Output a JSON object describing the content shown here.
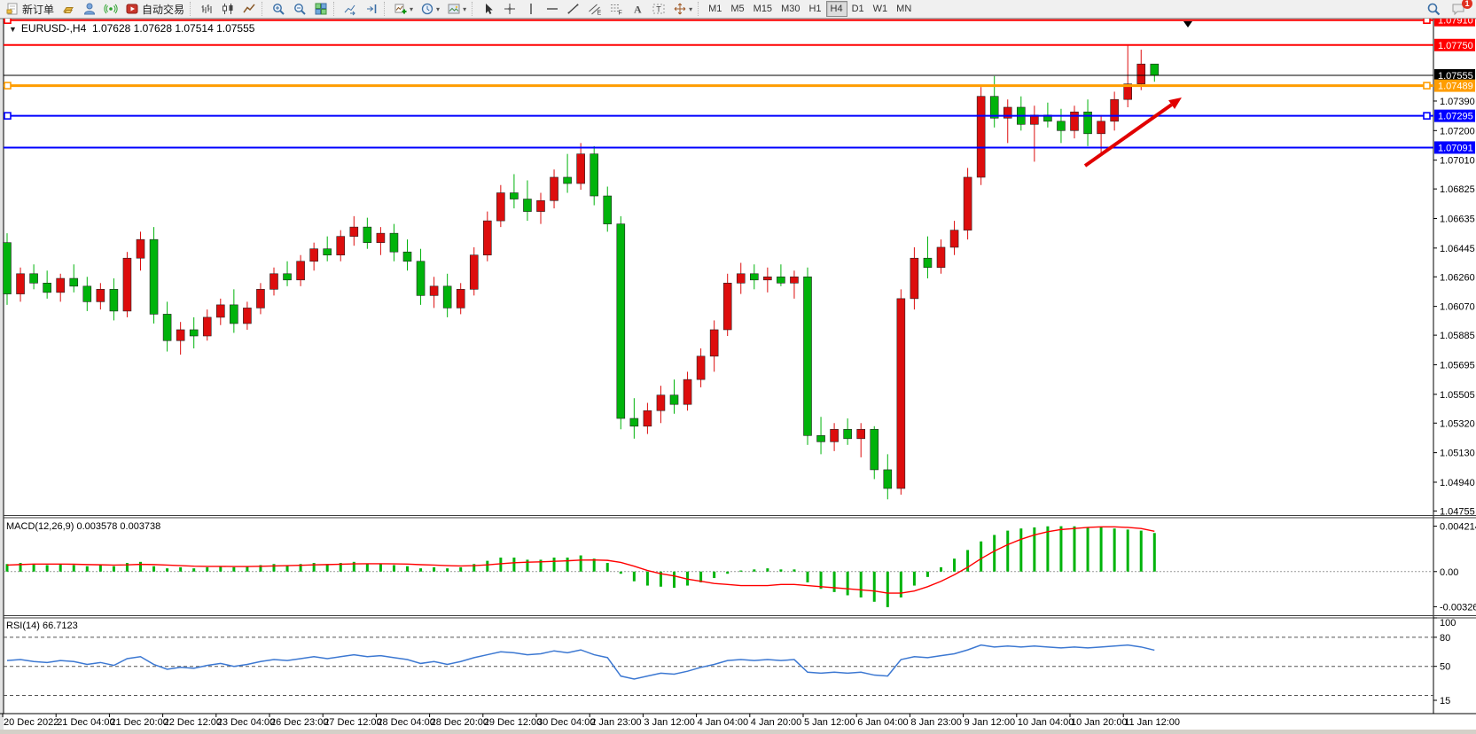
{
  "toolbar": {
    "groups": [
      {
        "items": [
          {
            "name": "new-order-button",
            "icon": "new-order",
            "label": "新订单"
          },
          {
            "name": "gold-button",
            "icon": "gold",
            "label": ""
          },
          {
            "name": "community-button",
            "icon": "community",
            "label": ""
          },
          {
            "name": "signals-button",
            "icon": "signals",
            "label": ""
          },
          {
            "name": "autotrading-button",
            "icon": "autotrading",
            "label": "自动交易"
          }
        ]
      },
      {
        "items": [
          {
            "name": "bars-chart-button",
            "icon": "bars",
            "label": ""
          },
          {
            "name": "candles-chart-button",
            "icon": "candles",
            "label": ""
          },
          {
            "name": "line-chart-button",
            "icon": "linechart",
            "label": ""
          }
        ]
      },
      {
        "items": [
          {
            "name": "zoom-in-button",
            "icon": "zoom-in",
            "label": ""
          },
          {
            "name": "zoom-out-button",
            "icon": "zoom-out",
            "label": ""
          },
          {
            "name": "tile-windows-button",
            "icon": "tile",
            "label": ""
          }
        ]
      },
      {
        "items": [
          {
            "name": "auto-scroll-button",
            "icon": "autoscroll",
            "label": ""
          },
          {
            "name": "chart-shift-button",
            "icon": "shift",
            "label": ""
          }
        ]
      },
      {
        "items": [
          {
            "name": "new-chart-button",
            "icon": "newchart",
            "label": "",
            "dropdown": true
          },
          {
            "name": "periods-button",
            "icon": "clock",
            "label": "",
            "dropdown": true
          },
          {
            "name": "templates-button",
            "icon": "template",
            "label": "",
            "dropdown": true
          }
        ]
      },
      {
        "items": [
          {
            "name": "cursor-button",
            "icon": "cursor",
            "label": ""
          },
          {
            "name": "crosshair-button",
            "icon": "crosshair",
            "label": ""
          },
          {
            "name": "vline-button",
            "icon": "vline",
            "label": ""
          },
          {
            "name": "hline-button",
            "icon": "hline",
            "label": ""
          },
          {
            "name": "trendline-button",
            "icon": "trendline",
            "label": ""
          },
          {
            "name": "channel-button",
            "icon": "channel",
            "label": ""
          },
          {
            "name": "fibonacci-button",
            "icon": "fibo",
            "label": ""
          },
          {
            "name": "text-button",
            "icon": "text",
            "label": ""
          },
          {
            "name": "label-button",
            "icon": "label",
            "label": ""
          },
          {
            "name": "arrows-button",
            "icon": "arrows",
            "label": "",
            "dropdown": true
          }
        ]
      }
    ],
    "timeframes": [
      "M1",
      "M5",
      "M15",
      "M30",
      "H1",
      "H4",
      "D1",
      "W1",
      "MN"
    ],
    "active_timeframe": "H4",
    "chat_badge": "1"
  },
  "chart": {
    "symbol": "EURUSD-,H4",
    "quote_line": "1.07628 1.07628 1.07514 1.07555",
    "macd_label": "MACD(12,26,9) 0.003578 0.003738",
    "rsi_label": "RSI(14) 66.7123"
  },
  "chart_data": [
    {
      "type": "candlestick",
      "symbol": "EURUSD-",
      "timeframe": "H4",
      "current_bar": {
        "open": 1.07628,
        "high": 1.07628,
        "low": 1.07514,
        "close": 1.07555
      },
      "up_color": "#dd0d0d",
      "down_color": "#00b30b",
      "ylim": [
        1.04729,
        1.07914
      ],
      "y_axis_ticks": [
        1.0739,
        1.072,
        1.0701,
        1.06825,
        1.06635,
        1.06445,
        1.0626,
        1.0607,
        1.05885,
        1.05695,
        1.05505,
        1.0532,
        1.0513,
        1.0494,
        1.04755
      ],
      "hlines": [
        {
          "price": 1.0791,
          "color": "#ff0000",
          "width": 2,
          "handles": true
        },
        {
          "price": 1.0775,
          "color": "#ff0000",
          "width": 2,
          "handles": false
        },
        {
          "price": 1.07555,
          "color": "#000000",
          "width": 1,
          "handles": false,
          "role": "current-price"
        },
        {
          "price": 1.07489,
          "color": "#ff9d00",
          "width": 3,
          "handles": true
        },
        {
          "price": 1.07295,
          "color": "#0000ff",
          "width": 2,
          "handles": true
        },
        {
          "price": 1.07091,
          "color": "#0000ff",
          "width": 2,
          "handles": false
        }
      ],
      "price_badges": [
        {
          "price": 1.0791,
          "bg": "#ff0000"
        },
        {
          "price": 1.0775,
          "bg": "#ff0000"
        },
        {
          "price": 1.07555,
          "bg": "#000000"
        },
        {
          "price": 1.07489,
          "bg": "#ff9d00"
        },
        {
          "price": 1.07295,
          "bg": "#0000ff"
        },
        {
          "price": 1.07091,
          "bg": "#0000ff"
        }
      ],
      "candles": [
        [
          1.0648,
          1.0654,
          1.0608,
          1.0615
        ],
        [
          1.0615,
          1.0632,
          1.061,
          1.0628
        ],
        [
          1.0628,
          1.0634,
          1.0618,
          1.0622
        ],
        [
          1.0622,
          1.063,
          1.0612,
          1.0616
        ],
        [
          1.0616,
          1.0628,
          1.061,
          1.0625
        ],
        [
          1.0625,
          1.0634,
          1.0616,
          1.062
        ],
        [
          1.062,
          1.0626,
          1.0604,
          1.061
        ],
        [
          1.061,
          1.0622,
          1.0605,
          1.0618
        ],
        [
          1.0618,
          1.0625,
          1.0598,
          1.0604
        ],
        [
          1.0604,
          1.0642,
          1.06,
          1.0638
        ],
        [
          1.0638,
          1.0655,
          1.063,
          1.065
        ],
        [
          1.065,
          1.0658,
          1.0596,
          1.0602
        ],
        [
          1.0602,
          1.061,
          1.0578,
          1.0585
        ],
        [
          1.0585,
          1.0597,
          1.0576,
          1.0592
        ],
        [
          1.0592,
          1.06,
          1.058,
          1.0588
        ],
        [
          1.0588,
          1.0605,
          1.0585,
          1.06
        ],
        [
          1.06,
          1.0612,
          1.0595,
          1.0608
        ],
        [
          1.0608,
          1.0618,
          1.059,
          1.0596
        ],
        [
          1.0596,
          1.061,
          1.0592,
          1.0606
        ],
        [
          1.0606,
          1.0622,
          1.0602,
          1.0618
        ],
        [
          1.0618,
          1.0632,
          1.0614,
          1.0628
        ],
        [
          1.0628,
          1.0636,
          1.062,
          1.0624
        ],
        [
          1.0624,
          1.064,
          1.062,
          1.0636
        ],
        [
          1.0636,
          1.0648,
          1.063,
          1.0644
        ],
        [
          1.0644,
          1.0652,
          1.0636,
          1.064
        ],
        [
          1.064,
          1.0656,
          1.0636,
          1.0652
        ],
        [
          1.0652,
          1.0665,
          1.0646,
          1.0658
        ],
        [
          1.0658,
          1.0664,
          1.0644,
          1.0648
        ],
        [
          1.0648,
          1.0658,
          1.064,
          1.0654
        ],
        [
          1.0654,
          1.066,
          1.0636,
          1.0642
        ],
        [
          1.0642,
          1.065,
          1.063,
          1.0636
        ],
        [
          1.0636,
          1.0644,
          1.0608,
          1.0614
        ],
        [
          1.0614,
          1.0626,
          1.0606,
          1.062
        ],
        [
          1.062,
          1.0628,
          1.06,
          1.0606
        ],
        [
          1.0606,
          1.0622,
          1.0602,
          1.0618
        ],
        [
          1.0618,
          1.0645,
          1.0614,
          1.064
        ],
        [
          1.064,
          1.0668,
          1.0636,
          1.0662
        ],
        [
          1.0662,
          1.0685,
          1.0658,
          1.068
        ],
        [
          1.068,
          1.0692,
          1.067,
          1.0676
        ],
        [
          1.0676,
          1.0688,
          1.0662,
          1.0668
        ],
        [
          1.0668,
          1.068,
          1.066,
          1.0675
        ],
        [
          1.0675,
          1.0695,
          1.067,
          1.069
        ],
        [
          1.069,
          1.0705,
          1.068,
          1.0686
        ],
        [
          1.0686,
          1.0712,
          1.0682,
          1.0705
        ],
        [
          1.0705,
          1.071,
          1.0672,
          1.0678
        ],
        [
          1.0678,
          1.0684,
          1.0655,
          1.066
        ],
        [
          1.066,
          1.0665,
          1.0528,
          1.0535
        ],
        [
          1.0535,
          1.0548,
          1.0522,
          1.053
        ],
        [
          1.053,
          1.0545,
          1.0525,
          1.054
        ],
        [
          1.054,
          1.0556,
          1.0532,
          1.055
        ],
        [
          1.055,
          1.056,
          1.0538,
          1.0544
        ],
        [
          1.0544,
          1.0565,
          1.054,
          1.056
        ],
        [
          1.056,
          1.058,
          1.0555,
          1.0575
        ],
        [
          1.0575,
          1.0598,
          1.0565,
          1.0592
        ],
        [
          1.0592,
          1.0628,
          1.0588,
          1.0622
        ],
        [
          1.0622,
          1.0635,
          1.0615,
          1.0628
        ],
        [
          1.0628,
          1.0634,
          1.0618,
          1.0624
        ],
        [
          1.0624,
          1.0632,
          1.0616,
          1.0626
        ],
        [
          1.0626,
          1.0634,
          1.062,
          1.0622
        ],
        [
          1.0622,
          1.063,
          1.0612,
          1.0626
        ],
        [
          1.0626,
          1.0632,
          1.0518,
          1.0524
        ],
        [
          1.0524,
          1.0536,
          1.0512,
          1.052
        ],
        [
          1.052,
          1.0532,
          1.0514,
          1.0528
        ],
        [
          1.0528,
          1.0535,
          1.0518,
          1.0522
        ],
        [
          1.0522,
          1.0532,
          1.051,
          1.0528
        ],
        [
          1.0528,
          1.053,
          1.0496,
          1.0502
        ],
        [
          1.0502,
          1.0512,
          1.0483,
          1.049
        ],
        [
          1.049,
          1.0618,
          1.0486,
          1.0612
        ],
        [
          1.0612,
          1.0645,
          1.0605,
          1.0638
        ],
        [
          1.0638,
          1.0652,
          1.0625,
          1.0632
        ],
        [
          1.0632,
          1.065,
          1.0628,
          1.0645
        ],
        [
          1.0645,
          1.0662,
          1.064,
          1.0656
        ],
        [
          1.0656,
          1.0696,
          1.065,
          1.069
        ],
        [
          1.069,
          1.0748,
          1.0685,
          1.0742
        ],
        [
          1.0742,
          1.0755,
          1.0722,
          1.0728
        ],
        [
          1.0728,
          1.074,
          1.0712,
          1.0735
        ],
        [
          1.0735,
          1.0742,
          1.072,
          1.0724
        ],
        [
          1.0724,
          1.0736,
          1.07,
          1.073
        ],
        [
          1.073,
          1.0738,
          1.0722,
          1.0726
        ],
        [
          1.0726,
          1.0734,
          1.0712,
          1.072
        ],
        [
          1.072,
          1.0736,
          1.0715,
          1.0732
        ],
        [
          1.0732,
          1.074,
          1.071,
          1.0718
        ],
        [
          1.0718,
          1.073,
          1.0705,
          1.0726
        ],
        [
          1.0726,
          1.0745,
          1.072,
          1.074
        ],
        [
          1.074,
          1.0775,
          1.0735,
          1.075
        ],
        [
          1.075,
          1.0772,
          1.0746,
          1.07628
        ],
        [
          1.07628,
          1.07628,
          1.07514,
          1.07555
        ]
      ],
      "annotations": [
        {
          "type": "trend-arrow",
          "color": "#e10000",
          "from": [
            1224,
            187
          ],
          "to": [
            1333,
            110
          ]
        },
        {
          "type": "triangle-marker",
          "color": "#000000",
          "x": 1340,
          "y": 24
        }
      ]
    },
    {
      "type": "bar",
      "name": "MACD",
      "params": "12,26,9",
      "current": {
        "macd": 0.003578,
        "signal": 0.003738
      },
      "colors": {
        "histogram": "#00b30b",
        "signal": "#ff0000"
      },
      "ylim": [
        -0.00405,
        0.005
      ],
      "axis_ticks": [
        {
          "v": 0.004214,
          "label": "0.004214"
        },
        {
          "v": 0,
          "label": "0.00"
        },
        {
          "v": -0.00326,
          "label": "-0.00326"
        }
      ],
      "histogram": [
        0.0007,
        0.0008,
        0.0007,
        0.0006,
        0.0007,
        0.0006,
        0.0005,
        0.0006,
        0.0005,
        0.0008,
        0.0009,
        0.0005,
        0.0003,
        0.0004,
        0.0003,
        0.0004,
        0.0005,
        0.0004,
        0.0005,
        0.0006,
        0.0007,
        0.0006,
        0.0007,
        0.0008,
        0.0007,
        0.0008,
        0.0009,
        0.0007,
        0.0007,
        0.0006,
        0.0005,
        0.0003,
        0.0004,
        0.0003,
        0.0004,
        0.0007,
        0.001,
        0.0013,
        0.0013,
        0.0011,
        0.0011,
        0.0013,
        0.0013,
        0.0015,
        0.0012,
        0.0008,
        -0.0002,
        -0.0009,
        -0.0013,
        -0.0014,
        -0.0015,
        -0.0013,
        -0.001,
        -0.0006,
        -0.0002,
        0.0001,
        0.0002,
        0.0003,
        0.0002,
        0.0002,
        -0.001,
        -0.0016,
        -0.0019,
        -0.0022,
        -0.0024,
        -0.0028,
        -0.0033,
        -0.0024,
        -0.0013,
        -0.0005,
        0.0004,
        0.0012,
        0.002,
        0.0028,
        0.0034,
        0.0038,
        0.004,
        0.0041,
        0.0042,
        0.00421,
        0.0042,
        0.0041,
        0.0041,
        0.004,
        0.0039,
        0.0038,
        0.003578
      ],
      "signal": [
        0.0006,
        0.00065,
        0.0007,
        0.0007,
        0.0007,
        0.00068,
        0.00065,
        0.00063,
        0.0006,
        0.00062,
        0.00067,
        0.00065,
        0.0006,
        0.00055,
        0.0005,
        0.00048,
        0.00048,
        0.00047,
        0.00047,
        0.00049,
        0.00052,
        0.00055,
        0.00058,
        0.00062,
        0.00065,
        0.00068,
        0.00072,
        0.00073,
        0.00073,
        0.00072,
        0.0007,
        0.00064,
        0.0006,
        0.00055,
        0.00052,
        0.00055,
        0.00062,
        0.00073,
        0.00082,
        0.00087,
        0.0009,
        0.00095,
        0.001,
        0.00107,
        0.00108,
        0.00104,
        0.00085,
        0.0005,
        0.0001,
        -0.0002,
        -0.0004,
        -0.0007,
        -0.0009,
        -0.0011,
        -0.0012,
        -0.0013,
        -0.0013,
        -0.0013,
        -0.0012,
        -0.0012,
        -0.0013,
        -0.0014,
        -0.0015,
        -0.0016,
        -0.0017,
        -0.0018,
        -0.002,
        -0.002,
        -0.0018,
        -0.0014,
        -0.0009,
        -0.0003,
        0.0004,
        0.0012,
        0.0019,
        0.0025,
        0.003,
        0.0034,
        0.0037,
        0.0039,
        0.004,
        0.0041,
        0.00415,
        0.00415,
        0.0041,
        0.004,
        0.003738
      ]
    },
    {
      "type": "line",
      "name": "RSI",
      "params": "14",
      "current": 66.7123,
      "color": "#3c78d2",
      "ylim": [
        15,
        100
      ],
      "levels": [
        80,
        50,
        20
      ],
      "axis_ticks": [
        {
          "v": 100,
          "label": "100"
        },
        {
          "v": 80,
          "label": "80"
        },
        {
          "v": 50,
          "label": "50"
        },
        {
          "v": 15,
          "label": "15"
        }
      ],
      "values": [
        56,
        57,
        55,
        54,
        56,
        55,
        52,
        54,
        51,
        58,
        60,
        52,
        47,
        49,
        48,
        51,
        53,
        50,
        52,
        55,
        57,
        56,
        58,
        60,
        58,
        60,
        62,
        60,
        61,
        59,
        57,
        53,
        55,
        52,
        55,
        59,
        62,
        65,
        64,
        62,
        63,
        66,
        64,
        67,
        62,
        59,
        40,
        37,
        40,
        43,
        42,
        45,
        49,
        52,
        56,
        57,
        56,
        57,
        56,
        57,
        44,
        43,
        44,
        43,
        44,
        41,
        40,
        57,
        60,
        59,
        61,
        63,
        67,
        72,
        70,
        71,
        70,
        71,
        70,
        69,
        70,
        69,
        70,
        71,
        72,
        70,
        66.7
      ]
    }
  ],
  "time_axis": {
    "labels": [
      "20 Dec 2022",
      "21 Dec 04:00",
      "21 Dec 20:00",
      "22 Dec 12:00",
      "23 Dec 04:00",
      "26 Dec 23:00",
      "27 Dec 12:00",
      "28 Dec 04:00",
      "28 Dec 20:00",
      "29 Dec 12:00",
      "30 Dec 04:00",
      "2 Jan 23:00",
      "3 Jan 12:00",
      "4 Jan 04:00",
      "4 Jan 20:00",
      "5 Jan 12:00",
      "6 Jan 04:00",
      "8 Jan 23:00",
      "9 Jan 12:00",
      "10 Jan 04:00",
      "10 Jan 20:00",
      "11 Jan 12:00"
    ]
  }
}
